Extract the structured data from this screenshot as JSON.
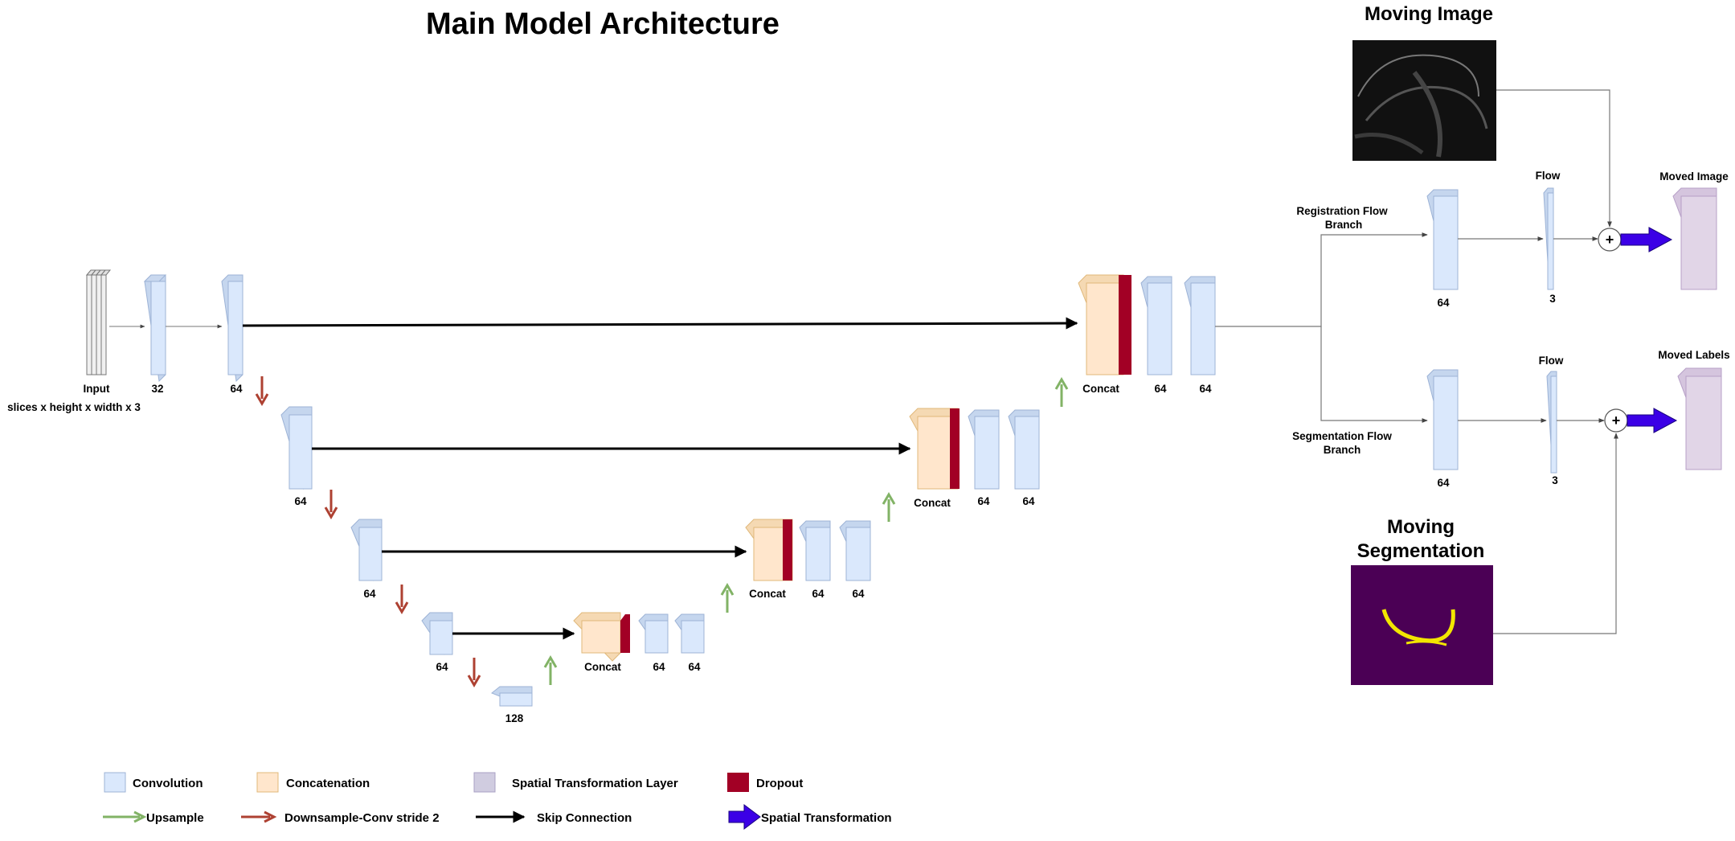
{
  "title": "Main Model Architecture",
  "labels": {
    "input": "Input",
    "input_dims": "slices x height x width x 3",
    "enc1": "32",
    "enc2": "64",
    "enc3": "64",
    "enc4": "64",
    "enc5": "64",
    "bottleneck": "128",
    "concat": "Concat",
    "c64": "64",
    "flow": "Flow",
    "flow_channels": "3",
    "reg_branch_1": "Registration Flow",
    "reg_branch_2": "Branch",
    "seg_branch_1": "Segmentation Flow",
    "seg_branch_2": "Branch",
    "moving_image": "Moving Image",
    "moving_seg_1": "Moving",
    "moving_seg_2": "Segmentation",
    "moved_image": "Moved Image",
    "moved_labels": "Moved Labels",
    "plus": "+"
  },
  "legend": {
    "convolution": "Convolution",
    "concatenation": "Concatenation",
    "spatial_layer": "Spatial Transformation Layer",
    "dropout": "Dropout",
    "upsample": "Upsample",
    "downsample": "Downsample-Conv stride 2",
    "skip": "Skip Connection",
    "spatial_transformation": "Spatial Transformation"
  },
  "colors": {
    "conv_fill": "#dae8fc",
    "conv_stroke": "#6c8ebf",
    "concat_fill": "#ffe6cc",
    "concat_stroke": "#d79b00",
    "st_fill": "#e1d5e7",
    "st_stroke": "#9673a6",
    "dropout": "#a20025",
    "upsample": "#82b366",
    "downsample": "#ae4132",
    "skip": "#000000",
    "spatial_arrow": "#3b00e6",
    "seg_bg": "#4b0055",
    "seg_label": "#f2e600"
  }
}
